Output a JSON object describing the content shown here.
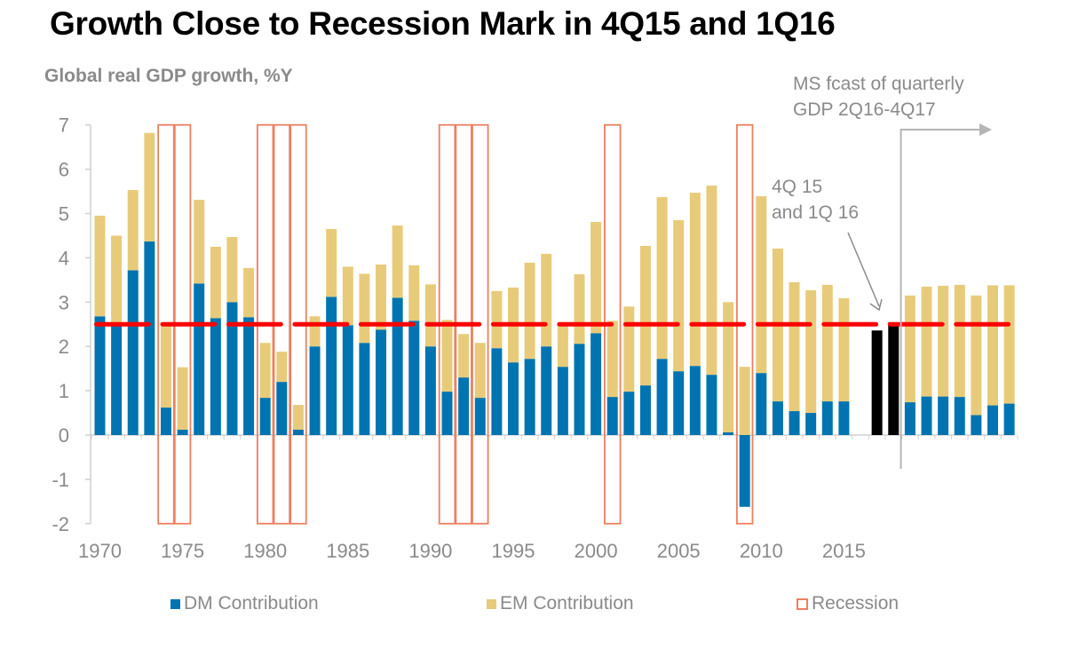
{
  "title": "Growth Close to Recession Mark in 4Q15 and 1Q16",
  "subtitle": "Global real GDP growth, %Y",
  "annotations": {
    "forecast_line1": "MS fcast of quarterly",
    "forecast_line2": "GDP 2Q16-4Q17",
    "quarter_line1": "4Q 15",
    "quarter_line2": "and 1Q 16"
  },
  "legend": {
    "dm": "DM Contribution",
    "em": "EM Contribution",
    "recession": "Recession"
  },
  "colors": {
    "dm": "#0074b0",
    "em": "#e8cb7a",
    "recession": "#ee7f5f",
    "highlight": "#000000",
    "threshold": "#ff0000",
    "axis": "#d0d0d0",
    "text": "#8a8a8a"
  },
  "chart_data": {
    "type": "bar",
    "stacked": true,
    "title": "Growth Close to Recession Mark in 4Q15 and 1Q16",
    "ylabel": "Global real GDP growth, %Y",
    "xlabel": "",
    "ylim": [
      -2,
      7
    ],
    "yticks": [
      7,
      6,
      5,
      4,
      3,
      2,
      1,
      0,
      -1,
      -2
    ],
    "xtick_labels": [
      "1970",
      "1975",
      "1980",
      "1985",
      "1990",
      "1995",
      "2000",
      "2005",
      "2010",
      "2015"
    ],
    "legend_position": "bottom",
    "recession_threshold": 2.5,
    "categories": [
      "1970",
      "1971",
      "1972",
      "1973",
      "1974",
      "1975",
      "1976",
      "1977",
      "1978",
      "1979",
      "1980",
      "1981",
      "1982",
      "1983",
      "1984",
      "1985",
      "1986",
      "1987",
      "1988",
      "1989",
      "1990",
      "1991",
      "1992",
      "1993",
      "1994",
      "1995",
      "1996",
      "1997",
      "1998",
      "1999",
      "2000",
      "2001",
      "2002",
      "2003",
      "2004",
      "2005",
      "2006",
      "2007",
      "2008",
      "2009",
      "2010",
      "2011",
      "2012",
      "2013",
      "2014",
      "2015"
    ],
    "series": [
      {
        "name": "DM Contribution",
        "values": [
          2.68,
          2.5,
          3.72,
          4.37,
          0.62,
          0.12,
          3.42,
          2.64,
          3.0,
          2.66,
          0.84,
          1.2,
          0.12,
          2.0,
          3.12,
          2.48,
          2.08,
          2.38,
          3.1,
          2.58,
          2.0,
          0.98,
          1.3,
          0.84,
          1.96,
          1.64,
          1.72,
          2.0,
          1.54,
          2.06,
          2.3,
          0.86,
          0.98,
          1.12,
          1.72,
          1.44,
          1.56,
          1.36,
          0.06,
          -1.62,
          1.4,
          0.76,
          0.54,
          0.5,
          0.76,
          0.76
        ]
      },
      {
        "name": "EM Contribution",
        "values": [
          2.27,
          2.0,
          1.81,
          2.45,
          1.88,
          1.41,
          1.89,
          1.61,
          1.47,
          1.11,
          1.24,
          0.68,
          0.56,
          0.68,
          1.53,
          1.32,
          1.56,
          1.47,
          1.63,
          1.25,
          1.4,
          1.62,
          0.98,
          1.24,
          1.29,
          1.69,
          2.17,
          2.09,
          0.98,
          1.57,
          2.51,
          1.72,
          1.92,
          3.15,
          3.65,
          3.41,
          3.91,
          4.27,
          2.94,
          1.54,
          3.99,
          3.45,
          2.91,
          2.77,
          2.63,
          2.33
        ]
      }
    ],
    "recession_years": [
      "1974",
      "1975",
      "1980",
      "1981",
      "1982",
      "1991",
      "1992",
      "1993",
      "2001",
      "2009"
    ],
    "highlight": {
      "categories": [
        "4Q15",
        "1Q16"
      ],
      "values": [
        2.36,
        2.54
      ]
    },
    "forecast": {
      "label": "MS fcast of quarterly GDP 2Q16-4Q17",
      "categories": [
        "2Q16",
        "3Q16",
        "4Q16",
        "1Q17",
        "2Q17",
        "3Q17",
        "4Q17"
      ],
      "dm": [
        0.74,
        0.87,
        0.87,
        0.86,
        0.45,
        0.67,
        0.71
      ],
      "em": [
        2.41,
        2.48,
        2.5,
        2.53,
        2.7,
        2.71,
        2.67
      ]
    }
  }
}
